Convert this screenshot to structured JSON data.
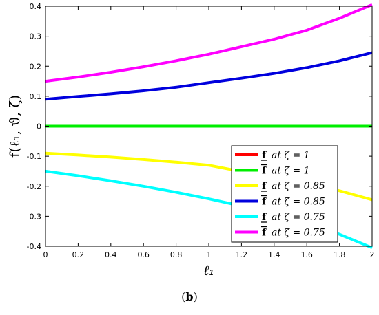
{
  "chart_data": {
    "type": "line",
    "xlabel": "ℓ₁",
    "ylabel": "f(ℓ₁, ϑ, ζ)",
    "xlim": [
      0,
      2
    ],
    "ylim": [
      -0.4,
      0.4
    ],
    "xticks": [
      "0",
      "0.2",
      "0.4",
      "0.6",
      "0.8",
      "1",
      "1.2",
      "1.4",
      "1.6",
      "1.8",
      "2"
    ],
    "yticks": [
      "0.4",
      "0.3",
      "0.2",
      "0.1",
      "0",
      "-0.1",
      "-0.2",
      "-0.3",
      "-0.4"
    ],
    "grid": false,
    "legend_position": "bottom-right",
    "x": [
      0,
      0.2,
      0.4,
      0.6,
      0.8,
      1.0,
      1.2,
      1.4,
      1.6,
      1.8,
      2.0
    ],
    "series": [
      {
        "name": "f at ζ = 1",
        "sym": "f",
        "mark": "under",
        "zeta": "1",
        "color": "#ff0000",
        "values": [
          0,
          0,
          0,
          0,
          0,
          0,
          0,
          0,
          0,
          0,
          0
        ]
      },
      {
        "name": "f̄ at ζ = 1",
        "sym": "f",
        "mark": "over",
        "zeta": "1",
        "color": "#00ee00",
        "values": [
          0,
          0,
          0,
          0,
          0,
          0,
          0,
          0,
          0,
          0,
          0
        ]
      },
      {
        "name": "f at ζ = 0.85",
        "sym": "f",
        "mark": "under",
        "zeta": "0.85",
        "color": "#ffff00",
        "values": [
          -0.09,
          -0.096,
          -0.103,
          -0.111,
          -0.12,
          -0.13,
          -0.151,
          -0.165,
          -0.192,
          -0.215,
          -0.245
        ]
      },
      {
        "name": "f̄ at ζ = 0.85",
        "sym": "f",
        "mark": "over",
        "zeta": "0.85",
        "color": "#0000dd",
        "values": [
          0.09,
          0.099,
          0.108,
          0.118,
          0.13,
          0.145,
          0.16,
          0.176,
          0.195,
          0.218,
          0.245
        ]
      },
      {
        "name": "f at ζ = 0.75",
        "sym": "f",
        "mark": "under",
        "zeta": "0.75",
        "color": "#00ffff",
        "values": [
          -0.15,
          -0.165,
          -0.182,
          -0.2,
          -0.22,
          -0.242,
          -0.266,
          -0.292,
          -0.32,
          -0.36,
          -0.405
        ]
      },
      {
        "name": "f̄ at ζ = 0.75",
        "sym": "f",
        "mark": "over",
        "zeta": "0.75",
        "color": "#ff00ff",
        "values": [
          0.15,
          0.164,
          0.18,
          0.198,
          0.218,
          0.24,
          0.265,
          0.29,
          0.32,
          0.36,
          0.405
        ]
      }
    ],
    "legend_at": "at",
    "legend_zeta_symbol": "ζ ="
  },
  "caption": {
    "open": "(",
    "letter": "b",
    "close": ")"
  }
}
